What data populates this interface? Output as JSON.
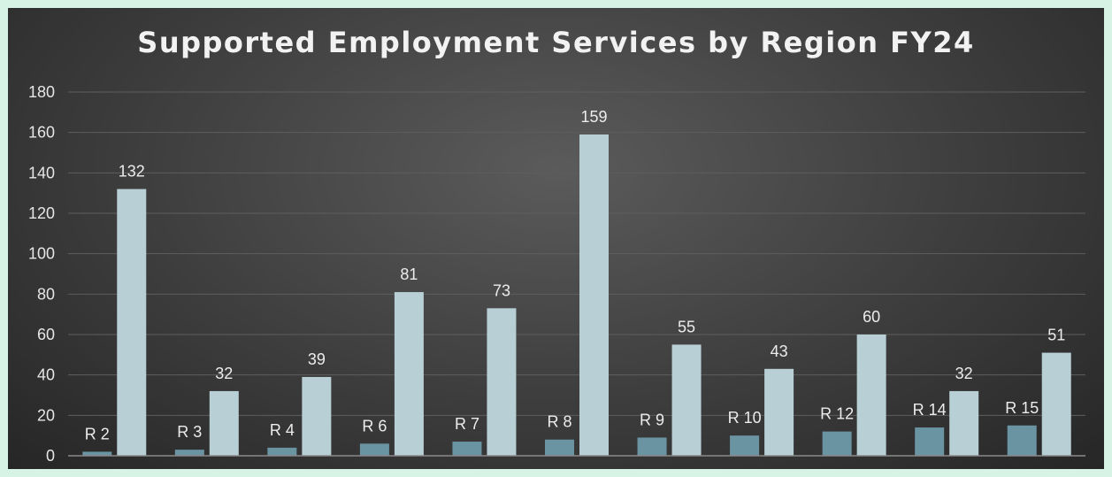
{
  "chart_data": {
    "type": "bar",
    "title": "Supported Employment Services by Region FY24",
    "categories": [
      "R 2",
      "R 3",
      "R 4",
      "R 6",
      "R 7",
      "R 8",
      "R 9",
      "R 10",
      "R 12",
      "R 14",
      "R 15"
    ],
    "series": [
      {
        "values": [
          2,
          3,
          4,
          6,
          7,
          8,
          9,
          10,
          12,
          14,
          15
        ],
        "color": "#6b94a3",
        "labeled_by": "category"
      },
      {
        "values": [
          132,
          32,
          39,
          81,
          73,
          159,
          55,
          43,
          60,
          32,
          51
        ],
        "color": "#b8cfd6",
        "labeled_by": "value"
      }
    ],
    "ylim": [
      0,
      180
    ],
    "yticks": [
      0,
      20,
      40,
      60,
      80,
      100,
      120,
      140,
      160,
      180
    ],
    "grid": true,
    "xlabel": "",
    "ylabel": ""
  }
}
